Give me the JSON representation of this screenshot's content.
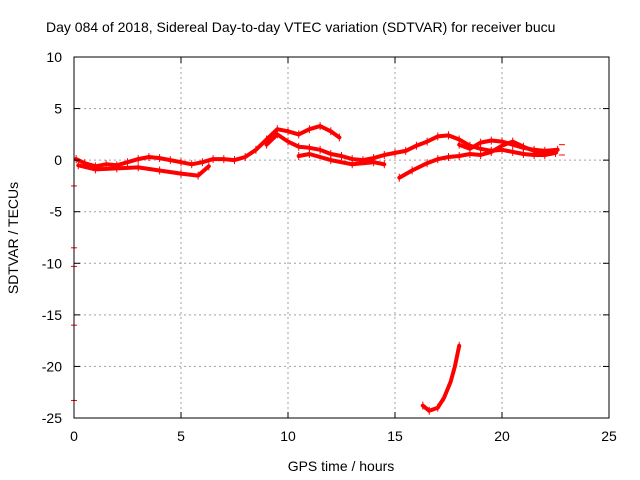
{
  "chart_data": {
    "type": "scatter",
    "title": "Day 084 of 2018, Sidereal Day-to-day VTEC variation (SDTVAR) for receiver bucu",
    "xlabel": "GPS time / hours",
    "ylabel": "SDTVAR / TECUs",
    "xlim": [
      0,
      25
    ],
    "ylim": [
      -25,
      10
    ],
    "xticks": [
      "0",
      "5",
      "10",
      "15",
      "20",
      "25"
    ],
    "yticks": [
      "-25",
      "-20",
      "-15",
      "-10",
      "-5",
      "0",
      "5",
      "10"
    ],
    "grid": true,
    "color": "#ff0000",
    "series": [
      {
        "name": "trace-1",
        "points": [
          [
            0.1,
            0.1
          ],
          [
            0.5,
            -0.3
          ],
          [
            1.0,
            -0.6
          ],
          [
            1.5,
            -0.4
          ],
          [
            2.0,
            -0.5
          ],
          [
            2.5,
            -0.2
          ],
          [
            3.0,
            0.1
          ],
          [
            3.5,
            0.3
          ],
          [
            4.0,
            0.2
          ],
          [
            4.5,
            0.0
          ],
          [
            5.0,
            -0.2
          ],
          [
            5.5,
            -0.4
          ],
          [
            6.0,
            -0.2
          ],
          [
            6.5,
            0.1
          ],
          [
            7.0,
            0.1
          ],
          [
            7.5,
            0.0
          ],
          [
            8.0,
            0.3
          ],
          [
            8.5,
            1.0
          ],
          [
            9.0,
            2.0
          ],
          [
            9.5,
            3.0
          ],
          [
            10.0,
            2.8
          ],
          [
            10.5,
            2.5
          ],
          [
            11.0,
            3.0
          ],
          [
            11.5,
            3.3
          ],
          [
            12.0,
            2.8
          ],
          [
            12.4,
            2.2
          ]
        ]
      },
      {
        "name": "trace-2",
        "points": [
          [
            0.2,
            -0.5
          ],
          [
            1.0,
            -0.9
          ],
          [
            2.0,
            -0.8
          ],
          [
            3.0,
            -0.7
          ],
          [
            4.0,
            -1.0
          ],
          [
            5.0,
            -1.3
          ],
          [
            5.8,
            -1.5
          ],
          [
            6.3,
            -0.6
          ]
        ]
      },
      {
        "name": "trace-3",
        "points": [
          [
            9.0,
            1.5
          ],
          [
            9.5,
            2.5
          ],
          [
            10.0,
            1.8
          ],
          [
            10.5,
            1.3
          ],
          [
            11.0,
            1.2
          ],
          [
            11.5,
            1.0
          ],
          [
            12.0,
            0.6
          ],
          [
            12.5,
            0.4
          ],
          [
            13.0,
            0.1
          ],
          [
            13.5,
            0.0
          ],
          [
            14.0,
            0.2
          ],
          [
            14.5,
            0.5
          ],
          [
            15.0,
            0.7
          ],
          [
            15.5,
            0.9
          ],
          [
            16.0,
            1.4
          ],
          [
            16.5,
            1.8
          ],
          [
            17.0,
            2.3
          ],
          [
            17.5,
            2.4
          ],
          [
            18.0,
            2.0
          ],
          [
            18.5,
            1.4
          ],
          [
            19.0,
            1.1
          ],
          [
            19.5,
            0.9
          ],
          [
            20.0,
            1.0
          ],
          [
            20.5,
            0.8
          ],
          [
            21.0,
            0.6
          ],
          [
            21.5,
            0.5
          ],
          [
            22.0,
            0.5
          ],
          [
            22.5,
            0.7
          ]
        ]
      },
      {
        "name": "trace-4",
        "points": [
          [
            10.5,
            0.4
          ],
          [
            11.0,
            0.6
          ],
          [
            12.0,
            0.0
          ],
          [
            13.0,
            -0.4
          ],
          [
            14.0,
            -0.2
          ],
          [
            14.5,
            -0.4
          ]
        ]
      },
      {
        "name": "trace-5",
        "points": [
          [
            15.2,
            -1.7
          ],
          [
            15.8,
            -1.0
          ],
          [
            16.5,
            -0.3
          ],
          [
            17.0,
            0.1
          ],
          [
            17.5,
            0.3
          ],
          [
            18.0,
            0.4
          ],
          [
            18.5,
            0.6
          ],
          [
            19.0,
            0.5
          ],
          [
            19.5,
            0.8
          ],
          [
            20.0,
            1.4
          ],
          [
            20.5,
            1.8
          ],
          [
            21.0,
            1.3
          ],
          [
            21.5,
            0.9
          ],
          [
            22.0,
            0.7
          ]
        ]
      },
      {
        "name": "trace-6",
        "points": [
          [
            18.0,
            1.5
          ],
          [
            18.5,
            1.1
          ],
          [
            19.0,
            1.7
          ],
          [
            19.5,
            1.9
          ],
          [
            20.0,
            1.8
          ],
          [
            20.5,
            1.5
          ],
          [
            21.0,
            1.2
          ],
          [
            21.5,
            1.0
          ],
          [
            22.0,
            0.9
          ],
          [
            22.6,
            1.0
          ]
        ]
      },
      {
        "name": "trace-7",
        "points": [
          [
            16.3,
            -23.8
          ],
          [
            16.6,
            -24.3
          ],
          [
            17.0,
            -24.0
          ],
          [
            17.3,
            -23.0
          ],
          [
            17.6,
            -21.5
          ],
          [
            17.8,
            -20.0
          ],
          [
            18.0,
            -18.0
          ]
        ]
      }
    ],
    "edge_marks": [
      -2.5,
      -8.5,
      -10.3,
      -16.0,
      -23.3
    ],
    "right_marks": [
      0.5,
      1.5
    ]
  }
}
